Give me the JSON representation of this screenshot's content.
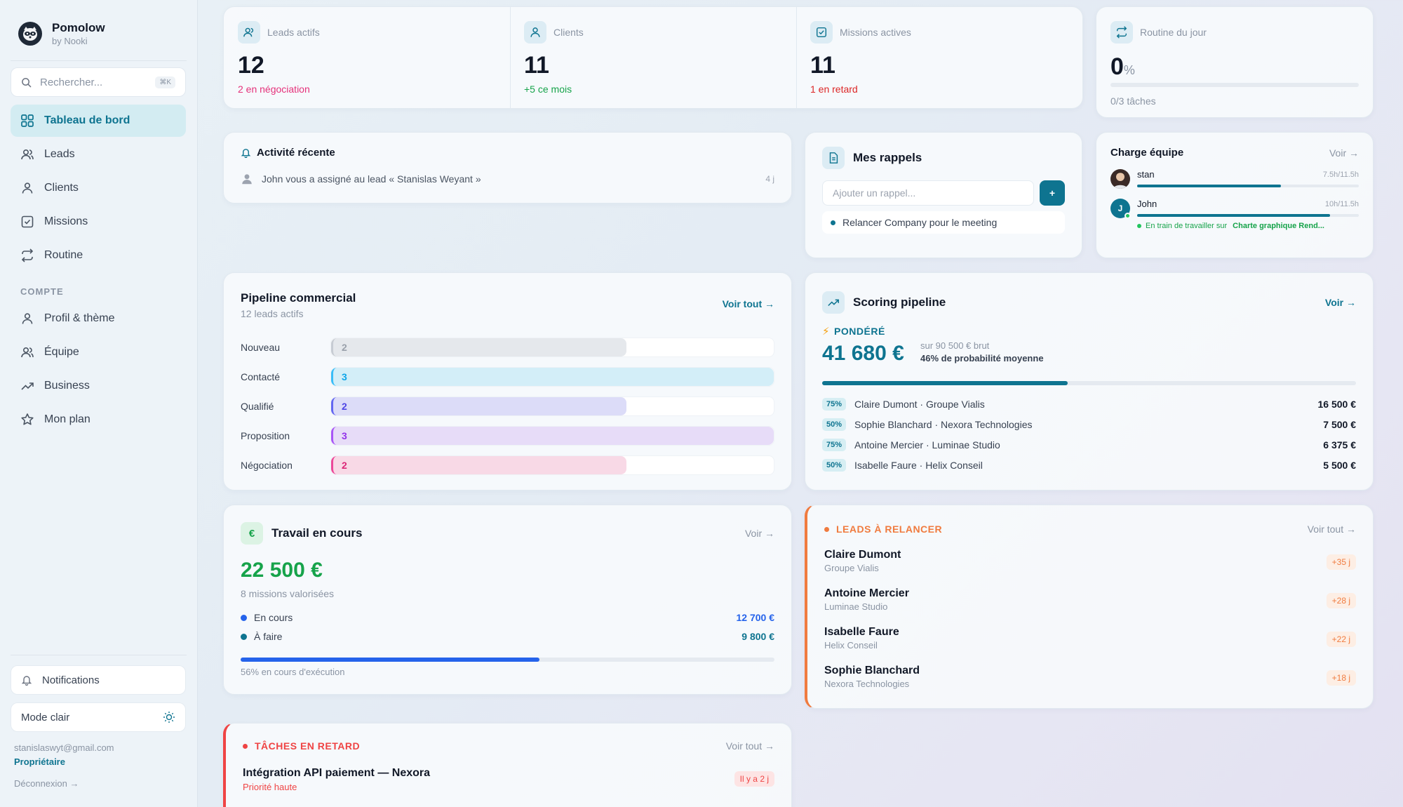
{
  "brand": {
    "name": "Pomolow",
    "sub": "by Nooki"
  },
  "search": {
    "placeholder": "Rechercher...",
    "shortcut": "⌘K"
  },
  "nav": {
    "items": [
      {
        "label": "Tableau de bord",
        "icon": "grid-icon"
      },
      {
        "label": "Leads",
        "icon": "users-icon"
      },
      {
        "label": "Clients",
        "icon": "user-icon"
      },
      {
        "label": "Missions",
        "icon": "check-square-icon"
      },
      {
        "label": "Routine",
        "icon": "repeat-icon"
      }
    ],
    "section": "COMPTE",
    "account_items": [
      {
        "label": "Profil & thème",
        "icon": "user-icon"
      },
      {
        "label": "Équipe",
        "icon": "users-icon"
      },
      {
        "label": "Business",
        "icon": "trending-up-icon"
      },
      {
        "label": "Mon plan",
        "icon": "star-icon"
      }
    ]
  },
  "sidebar_footer": {
    "notifications": "Notifications",
    "theme": "Mode clair",
    "email": "stanislaswyt@gmail.com",
    "role": "Propriétaire",
    "logout": "Déconnexion →"
  },
  "kpis": [
    {
      "label": "Leads actifs",
      "value": "12",
      "sub": "2 en négociation",
      "sub_color": "#e5317a"
    },
    {
      "label": "Clients",
      "value": "11",
      "sub": "+5 ce mois",
      "sub_color": "#16a34a"
    },
    {
      "label": "Missions actives",
      "value": "11",
      "sub": "1 en retard",
      "sub_color": "#dc2626"
    }
  ],
  "routine": {
    "label": "Routine du jour",
    "value": "0",
    "unit": "%",
    "progress": 0,
    "sub": "0/3 tâches"
  },
  "activity": {
    "title": "Activité récente",
    "items": [
      {
        "text": "John vous a assigné au lead « Stanislas Weyant »",
        "time": "4 j"
      }
    ]
  },
  "reminders": {
    "title": "Mes rappels",
    "placeholder": "Ajouter un rappel...",
    "add": "+",
    "items": [
      "Relancer Company pour le meeting"
    ]
  },
  "team": {
    "title": "Charge équipe",
    "link": "Voir →",
    "members": [
      {
        "name": "stan",
        "hours": "7.5h/11.5h",
        "load": 0.65,
        "initial": ""
      },
      {
        "name": "John",
        "hours": "10h/11.5h",
        "load": 0.87,
        "initial": "J"
      }
    ],
    "working_prefix": "En train de travailler sur",
    "working_task": "Charte graphique Rend..."
  },
  "pipeline": {
    "title": "Pipeline commercial",
    "subtitle": "12 leads actifs",
    "link": "Voir tout →",
    "max": 3,
    "stages": [
      {
        "label": "Nouveau",
        "count": 2,
        "fill": "#e5e8ec",
        "border": "#c7ccd3",
        "text": "#9aa1ab"
      },
      {
        "label": "Contacté",
        "count": 3,
        "fill": "#d3eef8",
        "border": "#38bdf8",
        "text": "#0ea5e9"
      },
      {
        "label": "Qualifié",
        "count": 2,
        "fill": "#dcdcf8",
        "border": "#6366f1",
        "text": "#4f46e5"
      },
      {
        "label": "Proposition",
        "count": 3,
        "fill": "#e7dcf8",
        "border": "#a855f7",
        "text": "#9333ea"
      },
      {
        "label": "Négociation",
        "count": 2,
        "fill": "#f8d9e6",
        "border": "#ec4899",
        "text": "#db2777"
      }
    ]
  },
  "scoring": {
    "title": "Scoring pipeline",
    "link": "Voir →",
    "tag": "PONDÉRÉ",
    "value": "41 680 €",
    "gross": "sur 90 500 € brut",
    "prob": "46% de probabilité moyenne",
    "progress": 0.46,
    "rows": [
      {
        "pct": "75%",
        "label": "Claire Dumont · Groupe Vialis",
        "value": "16 500 €"
      },
      {
        "pct": "50%",
        "label": "Sophie Blanchard · Nexora Technologies",
        "value": "7 500 €"
      },
      {
        "pct": "75%",
        "label": "Antoine Mercier · Luminae Studio",
        "value": "6 375 €"
      },
      {
        "pct": "50%",
        "label": "Isabelle Faure · Helix Conseil",
        "value": "5 500 €"
      }
    ]
  },
  "work": {
    "title": "Travail en cours",
    "icon_label": "€",
    "link": "Voir →",
    "value": "22 500 €",
    "sub": "8 missions valorisées",
    "rows": [
      {
        "label": "En cours",
        "value": "12 700 €",
        "color": "#2563eb"
      },
      {
        "label": "À faire",
        "value": "9 800 €",
        "color": "#0e7490"
      }
    ],
    "progress": 0.56,
    "progress_label": "56% en cours d'exécution"
  },
  "relaunch": {
    "title": "LEADS À RELANCER",
    "link": "Voir tout →",
    "leads": [
      {
        "name": "Claire Dumont",
        "company": "Groupe Vialis",
        "badge": "+35 j"
      },
      {
        "name": "Antoine Mercier",
        "company": "Luminae Studio",
        "badge": "+28 j"
      },
      {
        "name": "Isabelle Faure",
        "company": "Helix Conseil",
        "badge": "+22 j"
      },
      {
        "name": "Sophie Blanchard",
        "company": "Nexora Technologies",
        "badge": "+18 j"
      }
    ]
  },
  "late": {
    "title": "TÂCHES EN RETARD",
    "link": "Voir tout →",
    "task": "Intégration API paiement — Nexora",
    "priority": "Priorité haute",
    "badge": "Il y a 2 j"
  }
}
